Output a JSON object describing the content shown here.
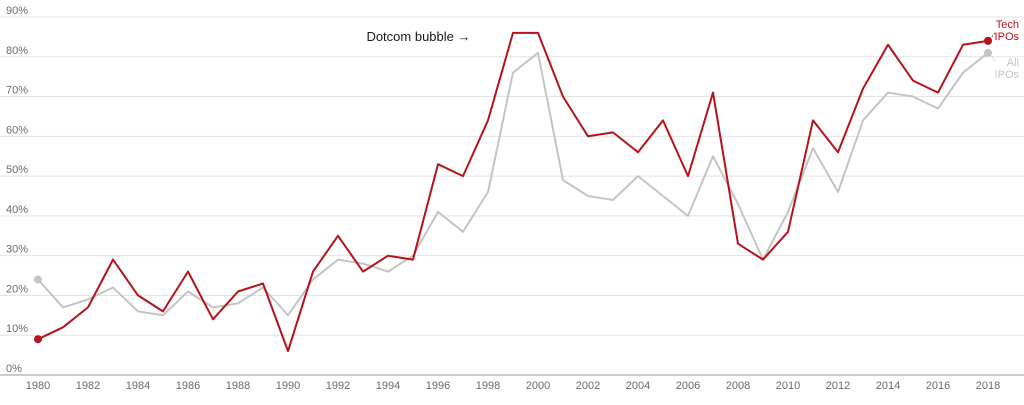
{
  "chart_data": {
    "type": "line",
    "title": "",
    "xlabel": "",
    "ylabel": "",
    "x": [
      1980,
      1981,
      1982,
      1983,
      1984,
      1985,
      1986,
      1987,
      1988,
      1989,
      1990,
      1991,
      1992,
      1993,
      1994,
      1995,
      1996,
      1997,
      1998,
      1999,
      2000,
      2001,
      2002,
      2003,
      2004,
      2005,
      2006,
      2007,
      2008,
      2009,
      2010,
      2011,
      2012,
      2013,
      2014,
      2015,
      2016,
      2017,
      2018
    ],
    "xlim": [
      1980,
      2018
    ],
    "ylim": [
      0,
      90
    ],
    "x_ticks": [
      "1980",
      "1982",
      "1984",
      "1986",
      "1988",
      "1990",
      "1992",
      "1994",
      "1996",
      "1998",
      "2000",
      "2002",
      "2004",
      "2006",
      "2008",
      "2010",
      "2012",
      "2014",
      "2016",
      "2018"
    ],
    "y_ticks": [
      "0%",
      "10%",
      "20%",
      "30%",
      "40%",
      "50%",
      "60%",
      "70%",
      "80%",
      "90%"
    ],
    "grid": true,
    "series": [
      {
        "id": "all",
        "label_lines": [
          "All",
          "IPOs"
        ],
        "color": "#c4c4c4",
        "values": [
          24,
          17,
          19,
          22,
          16,
          15,
          21,
          17,
          18,
          22,
          15,
          24,
          29,
          28,
          26,
          30,
          41,
          36,
          46,
          76,
          81,
          49,
          45,
          44,
          50,
          45,
          40,
          55,
          43,
          29,
          41,
          57,
          46,
          64,
          71,
          70,
          67,
          76,
          81
        ]
      },
      {
        "id": "tech",
        "label_lines": [
          "Tech",
          "IPOs"
        ],
        "color": "#b5121b",
        "values": [
          9,
          12,
          17,
          29,
          20,
          16,
          26,
          14,
          21,
          23,
          6,
          26,
          35,
          26,
          30,
          29,
          53,
          50,
          64,
          86,
          86,
          70,
          60,
          61,
          56,
          64,
          50,
          71,
          33,
          29,
          36,
          64,
          56,
          72,
          83,
          74,
          71,
          83,
          84
        ]
      }
    ],
    "annotations": [
      {
        "id": "dotcom",
        "text": "Dotcom bubble →",
        "x": 1997.3,
        "y": 84
      }
    ]
  }
}
